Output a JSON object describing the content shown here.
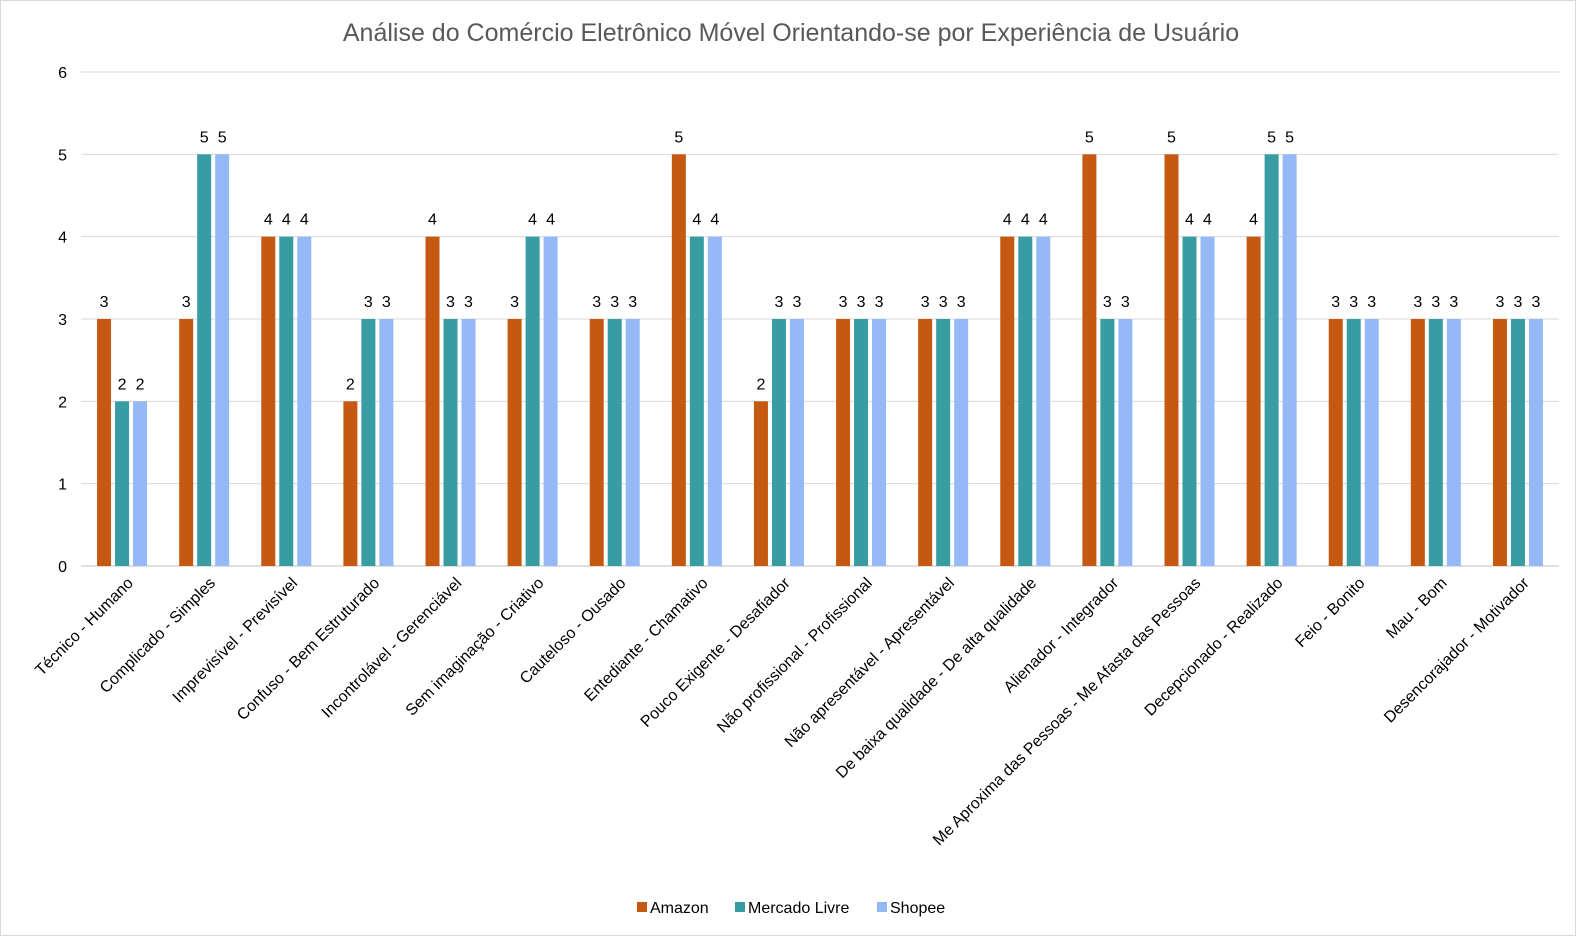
{
  "chart_data": {
    "type": "bar",
    "title": "Análise do Comércio Eletrônico Móvel Orientando-se por Experiência de Usuário",
    "xlabel": "",
    "ylabel": "",
    "ylim": [
      0,
      6
    ],
    "yticks": [
      "0",
      "1",
      "2",
      "3",
      "4",
      "5",
      "6"
    ],
    "grid": true,
    "legend_position": "bottom",
    "data_labels": true,
    "categories": [
      "Técnico - Humano",
      "Complicado - Simples",
      "Imprevisível - Previsível",
      "Confuso - Bem Estruturado",
      "Incontrolável - Gerenciável",
      "Sem imaginação - Criativo",
      "Cauteloso - Ousado",
      "Entediante - Chamativo",
      "Pouco Exigente - Desafiador",
      "Não profissional - Profissional",
      "Não apresentável - Apresentável",
      "De baixa qualidade - De alta qualidade",
      "Alienador - Integrador",
      "Me Aproxima das Pessoas - Me Afasta das Pessoas",
      "Decepcionado - Realizado",
      "Feio - Bonito",
      "Mau - Bom",
      "Desencorajador - Motivador"
    ],
    "series": [
      {
        "name": "Amazon",
        "color": "#c65911",
        "values": [
          3,
          3,
          4,
          2,
          4,
          3,
          3,
          5,
          2,
          3,
          3,
          4,
          5,
          5,
          4,
          3,
          3,
          3
        ]
      },
      {
        "name": "Mercado Livre",
        "color": "#389ca3",
        "values": [
          2,
          5,
          4,
          3,
          3,
          4,
          3,
          4,
          3,
          3,
          3,
          4,
          3,
          4,
          5,
          3,
          3,
          3
        ]
      },
      {
        "name": "Shopee",
        "color": "#95b8f6",
        "values": [
          2,
          5,
          4,
          3,
          3,
          4,
          3,
          4,
          3,
          3,
          3,
          4,
          3,
          4,
          5,
          3,
          3,
          3
        ]
      }
    ]
  }
}
